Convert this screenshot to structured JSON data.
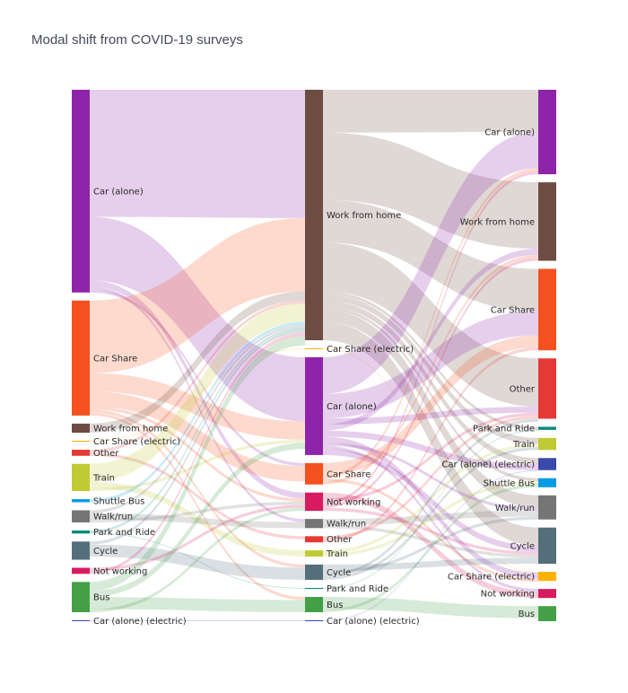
{
  "chart_data": {
    "type": "sankey",
    "title": "Modal shift from COVID-19 surveys",
    "columns": [
      {
        "nodes": [
          {
            "label": "Car (alone)",
            "color": "#8e24aa",
            "value": 67
          },
          {
            "label": "Car Share",
            "color": "#f4511e",
            "value": 38
          },
          {
            "label": "Work from home",
            "color": "#6d4c41",
            "value": 3
          },
          {
            "label": "Car Share (electric)",
            "color": "#ffb300",
            "value": 0.3
          },
          {
            "label": "Other",
            "color": "#e53935",
            "value": 2
          },
          {
            "label": "Train",
            "color": "#c0ca33",
            "value": 9
          },
          {
            "label": "Shuttle Bus",
            "color": "#039be5",
            "value": 1
          },
          {
            "label": "Walk/run",
            "color": "#757575",
            "value": 4
          },
          {
            "label": "Park and Ride",
            "color": "#00897b",
            "value": 1
          },
          {
            "label": "Cycle",
            "color": "#546e7a",
            "value": 6
          },
          {
            "label": "Not working",
            "color": "#d81b60",
            "value": 2
          },
          {
            "label": "Bus",
            "color": "#43a047",
            "value": 10
          },
          {
            "label": "Car (alone) (electric)",
            "color": "#3949ab",
            "value": 0.3
          }
        ]
      },
      {
        "nodes": [
          {
            "label": "Work from home",
            "color": "#6d4c41",
            "value": 82
          },
          {
            "label": "Car Share (electric)",
            "color": "#ffb300",
            "value": 0.3
          },
          {
            "label": "Car (alone)",
            "color": "#8e24aa",
            "value": 32
          },
          {
            "label": "Car Share",
            "color": "#f4511e",
            "value": 7
          },
          {
            "label": "Not working",
            "color": "#d81b60",
            "value": 6
          },
          {
            "label": "Walk/run",
            "color": "#757575",
            "value": 3
          },
          {
            "label": "Other",
            "color": "#e53935",
            "value": 2
          },
          {
            "label": "Train",
            "color": "#c0ca33",
            "value": 2
          },
          {
            "label": "Cycle",
            "color": "#546e7a",
            "value": 5
          },
          {
            "label": "Park and Ride",
            "color": "#00897b",
            "value": 0.3
          },
          {
            "label": "Bus",
            "color": "#43a047",
            "value": 5
          },
          {
            "label": "Car (alone) (electric)",
            "color": "#3949ab",
            "value": 0.3
          }
        ]
      },
      {
        "nodes": [
          {
            "label": "Car (alone)",
            "color": "#8e24aa",
            "value": 28
          },
          {
            "label": "Work from home",
            "color": "#6d4c41",
            "value": 26
          },
          {
            "label": "Car Share",
            "color": "#f4511e",
            "value": 27
          },
          {
            "label": "Other",
            "color": "#e53935",
            "value": 20
          },
          {
            "label": "Park and Ride",
            "color": "#00897b",
            "value": 1
          },
          {
            "label": "Train",
            "color": "#c0ca33",
            "value": 4
          },
          {
            "label": "Car (alone) (electric)",
            "color": "#3949ab",
            "value": 4
          },
          {
            "label": "Shuttle Bus",
            "color": "#039be5",
            "value": 3
          },
          {
            "label": "Walk/run",
            "color": "#757575",
            "value": 8
          },
          {
            "label": "Cycle",
            "color": "#546e7a",
            "value": 12
          },
          {
            "label": "Car Share (electric)",
            "color": "#ffb300",
            "value": 3
          },
          {
            "label": "Not working",
            "color": "#d81b60",
            "value": 3
          },
          {
            "label": "Bus",
            "color": "#43a047",
            "value": 5
          }
        ]
      }
    ],
    "links": [
      {
        "from": [
          0,
          0
        ],
        "to": [
          1,
          0
        ],
        "value": 42
      },
      {
        "from": [
          0,
          0
        ],
        "to": [
          1,
          2
        ],
        "value": 21
      },
      {
        "from": [
          0,
          0
        ],
        "to": [
          1,
          4
        ],
        "value": 2
      },
      {
        "from": [
          0,
          0
        ],
        "to": [
          1,
          5
        ],
        "value": 1
      },
      {
        "from": [
          0,
          0
        ],
        "to": [
          1,
          3
        ],
        "value": 1
      },
      {
        "from": [
          0,
          1
        ],
        "to": [
          1,
          0
        ],
        "value": 24
      },
      {
        "from": [
          0,
          1
        ],
        "to": [
          1,
          2
        ],
        "value": 6
      },
      {
        "from": [
          0,
          1
        ],
        "to": [
          1,
          3
        ],
        "value": 5
      },
      {
        "from": [
          0,
          1
        ],
        "to": [
          1,
          4
        ],
        "value": 1
      },
      {
        "from": [
          0,
          1
        ],
        "to": [
          1,
          8
        ],
        "value": 1
      },
      {
        "from": [
          0,
          1
        ],
        "to": [
          1,
          10
        ],
        "value": 1
      },
      {
        "from": [
          0,
          2
        ],
        "to": [
          1,
          0
        ],
        "value": 3
      },
      {
        "from": [
          0,
          3
        ],
        "to": [
          1,
          1
        ],
        "value": 0.3
      },
      {
        "from": [
          0,
          4
        ],
        "to": [
          1,
          0
        ],
        "value": 1
      },
      {
        "from": [
          0,
          4
        ],
        "to": [
          1,
          6
        ],
        "value": 1
      },
      {
        "from": [
          0,
          5
        ],
        "to": [
          1,
          0
        ],
        "value": 6
      },
      {
        "from": [
          0,
          5
        ],
        "to": [
          1,
          7
        ],
        "value": 2
      },
      {
        "from": [
          0,
          5
        ],
        "to": [
          1,
          2
        ],
        "value": 1
      },
      {
        "from": [
          0,
          6
        ],
        "to": [
          1,
          0
        ],
        "value": 1
      },
      {
        "from": [
          0,
          7
        ],
        "to": [
          1,
          0
        ],
        "value": 1
      },
      {
        "from": [
          0,
          7
        ],
        "to": [
          1,
          5
        ],
        "value": 2
      },
      {
        "from": [
          0,
          7
        ],
        "to": [
          1,
          4
        ],
        "value": 1
      },
      {
        "from": [
          0,
          8
        ],
        "to": [
          1,
          0
        ],
        "value": 0.7
      },
      {
        "from": [
          0,
          8
        ],
        "to": [
          1,
          9
        ],
        "value": 0.3
      },
      {
        "from": [
          0,
          9
        ],
        "to": [
          1,
          0
        ],
        "value": 1
      },
      {
        "from": [
          0,
          9
        ],
        "to": [
          1,
          8
        ],
        "value": 4
      },
      {
        "from": [
          0,
          10
        ],
        "to": [
          1,
          4
        ],
        "value": 1
      },
      {
        "from": [
          0,
          10
        ],
        "to": [
          1,
          0
        ],
        "value": 1
      },
      {
        "from": [
          0,
          11
        ],
        "to": [
          1,
          0
        ],
        "value": 3
      },
      {
        "from": [
          0,
          11
        ],
        "to": [
          1,
          2
        ],
        "value": 2
      },
      {
        "from": [
          0,
          11
        ],
        "to": [
          1,
          10
        ],
        "value": 4
      },
      {
        "from": [
          0,
          11
        ],
        "to": [
          1,
          4
        ],
        "value": 1
      },
      {
        "from": [
          0,
          12
        ],
        "to": [
          1,
          11
        ],
        "value": 0.3
      },
      {
        "from": [
          1,
          0
        ],
        "to": [
          2,
          0
        ],
        "value": 14
      },
      {
        "from": [
          1,
          0
        ],
        "to": [
          2,
          1
        ],
        "value": 22
      },
      {
        "from": [
          1,
          0
        ],
        "to": [
          2,
          2
        ],
        "value": 14
      },
      {
        "from": [
          1,
          0
        ],
        "to": [
          2,
          3
        ],
        "value": 16
      },
      {
        "from": [
          1,
          0
        ],
        "to": [
          2,
          4
        ],
        "value": 1
      },
      {
        "from": [
          1,
          0
        ],
        "to": [
          2,
          5
        ],
        "value": 2
      },
      {
        "from": [
          1,
          0
        ],
        "to": [
          2,
          6
        ],
        "value": 2
      },
      {
        "from": [
          1,
          0
        ],
        "to": [
          2,
          7
        ],
        "value": 1
      },
      {
        "from": [
          1,
          0
        ],
        "to": [
          2,
          8
        ],
        "value": 4
      },
      {
        "from": [
          1,
          0
        ],
        "to": [
          2,
          9
        ],
        "value": 6
      },
      {
        "from": [
          1,
          1
        ],
        "to": [
          2,
          10
        ],
        "value": 0.3
      },
      {
        "from": [
          1,
          2
        ],
        "to": [
          2,
          0
        ],
        "value": 12
      },
      {
        "from": [
          1,
          2
        ],
        "to": [
          2,
          2
        ],
        "value": 8
      },
      {
        "from": [
          1,
          2
        ],
        "to": [
          2,
          3
        ],
        "value": 2
      },
      {
        "from": [
          1,
          2
        ],
        "to": [
          2,
          1
        ],
        "value": 2
      },
      {
        "from": [
          1,
          2
        ],
        "to": [
          2,
          6
        ],
        "value": 2
      },
      {
        "from": [
          1,
          2
        ],
        "to": [
          2,
          10
        ],
        "value": 2
      },
      {
        "from": [
          1,
          2
        ],
        "to": [
          2,
          8
        ],
        "value": 1
      },
      {
        "from": [
          1,
          2
        ],
        "to": [
          2,
          11
        ],
        "value": 1
      },
      {
        "from": [
          1,
          2
        ],
        "to": [
          2,
          9
        ],
        "value": 2
      },
      {
        "from": [
          1,
          3
        ],
        "to": [
          2,
          2
        ],
        "value": 4
      },
      {
        "from": [
          1,
          3
        ],
        "to": [
          2,
          0
        ],
        "value": 1
      },
      {
        "from": [
          1,
          3
        ],
        "to": [
          2,
          10
        ],
        "value": 1
      },
      {
        "from": [
          1,
          3
        ],
        "to": [
          2,
          1
        ],
        "value": 1
      },
      {
        "from": [
          1,
          4
        ],
        "to": [
          2,
          11
        ],
        "value": 2
      },
      {
        "from": [
          1,
          4
        ],
        "to": [
          2,
          3
        ],
        "value": 1
      },
      {
        "from": [
          1,
          4
        ],
        "to": [
          2,
          0
        ],
        "value": 1
      },
      {
        "from": [
          1,
          4
        ],
        "to": [
          2,
          1
        ],
        "value": 1
      },
      {
        "from": [
          1,
          4
        ],
        "to": [
          2,
          9
        ],
        "value": 1
      },
      {
        "from": [
          1,
          5
        ],
        "to": [
          2,
          8
        ],
        "value": 2
      },
      {
        "from": [
          1,
          5
        ],
        "to": [
          2,
          9
        ],
        "value": 1
      },
      {
        "from": [
          1,
          6
        ],
        "to": [
          2,
          3
        ],
        "value": 1
      },
      {
        "from": [
          1,
          6
        ],
        "to": [
          2,
          2
        ],
        "value": 1
      },
      {
        "from": [
          1,
          7
        ],
        "to": [
          2,
          5
        ],
        "value": 1
      },
      {
        "from": [
          1,
          7
        ],
        "to": [
          2,
          7
        ],
        "value": 1
      },
      {
        "from": [
          1,
          8
        ],
        "to": [
          2,
          9
        ],
        "value": 2
      },
      {
        "from": [
          1,
          8
        ],
        "to": [
          2,
          8
        ],
        "value": 1
      },
      {
        "from": [
          1,
          8
        ],
        "to": [
          2,
          3
        ],
        "value": 1
      },
      {
        "from": [
          1,
          8
        ],
        "to": [
          2,
          5
        ],
        "value": 1
      },
      {
        "from": [
          1,
          9
        ],
        "to": [
          2,
          4
        ],
        "value": 0.3
      },
      {
        "from": [
          1,
          10
        ],
        "to": [
          2,
          12
        ],
        "value": 4
      },
      {
        "from": [
          1,
          10
        ],
        "to": [
          2,
          7
        ],
        "value": 1
      },
      {
        "from": [
          1,
          11
        ],
        "to": [
          2,
          6
        ],
        "value": 0.3
      }
    ]
  }
}
